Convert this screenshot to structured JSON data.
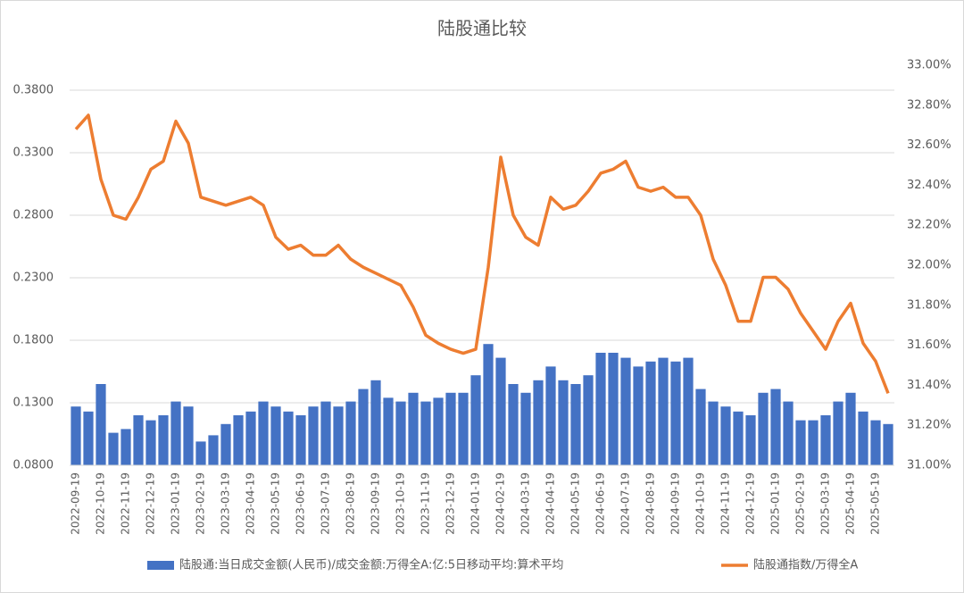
{
  "chart_data": {
    "type": "bar-line",
    "title": "陆股通比较",
    "categories": [
      "2022-09-19",
      null,
      "2022-10-19",
      null,
      "2022-11-19",
      null,
      "2022-12-19",
      null,
      "2023-01-19",
      null,
      "2023-02-19",
      null,
      "2023-03-19",
      null,
      "2023-04-19",
      null,
      "2023-05-19",
      null,
      "2023-06-19",
      null,
      "2023-07-19",
      null,
      "2023-08-19",
      null,
      "2023-09-19",
      null,
      "2023-10-19",
      null,
      "2023-11-19",
      null,
      "2023-12-19",
      null,
      "2024-01-19",
      null,
      "2024-02-19",
      null,
      "2024-03-19",
      null,
      "2024-04-19",
      null,
      "2024-05-19",
      null,
      "2024-06-19",
      null,
      "2024-07-19",
      null,
      "2024-08-19",
      null,
      "2024-09-19",
      null,
      "2024-10-19",
      null,
      "2024-11-19",
      null,
      "2024-12-19",
      null,
      "2025-01-19",
      null,
      "2025-02-19",
      null,
      "2025-03-19",
      null,
      "2025-04-19",
      null,
      "2025-05-19",
      null
    ],
    "series": [
      {
        "name": "陆股通:当日成交金额(人民币)/成交金额:万得全A:亿:5日移动平均:算术平均",
        "color": "#4472c4",
        "type": "bar",
        "values": [
          0.127,
          0.123,
          0.145,
          0.106,
          0.109,
          0.12,
          0.116,
          0.12,
          0.131,
          0.127,
          0.099,
          0.104,
          0.113,
          0.12,
          0.123,
          0.131,
          0.127,
          0.123,
          0.12,
          0.127,
          0.131,
          0.127,
          0.131,
          0.141,
          0.148,
          0.134,
          0.131,
          0.138,
          0.131,
          0.134,
          0.138,
          0.138,
          0.152,
          0.177,
          0.166,
          0.145,
          0.138,
          0.148,
          0.159,
          0.148,
          0.145,
          0.152,
          0.17,
          0.17,
          0.166,
          0.159,
          0.163,
          0.166,
          0.163,
          0.166,
          0.141,
          0.131,
          0.127,
          0.123,
          0.12,
          0.138,
          0.141,
          0.131,
          0.116,
          0.116,
          0.12,
          0.131,
          0.138,
          0.123,
          0.116,
          0.113
        ]
      },
      {
        "name": "陆股通指数/万得全A",
        "color": "#ed7d31",
        "type": "line",
        "axis": "y2",
        "values": [
          32.68,
          32.75,
          32.43,
          32.25,
          32.23,
          32.34,
          32.48,
          32.52,
          32.72,
          32.61,
          32.34,
          32.32,
          32.3,
          32.32,
          32.34,
          32.3,
          32.14,
          32.08,
          32.1,
          32.05,
          32.05,
          32.1,
          32.03,
          31.99,
          31.96,
          31.93,
          31.9,
          31.79,
          31.65,
          31.61,
          31.58,
          31.56,
          31.58,
          31.99,
          32.54,
          32.25,
          32.14,
          32.1,
          32.34,
          32.28,
          32.3,
          32.37,
          32.46,
          32.48,
          32.52,
          32.39,
          32.37,
          32.39,
          32.34,
          32.34,
          32.25,
          32.03,
          31.9,
          31.72,
          31.72,
          31.94,
          31.94,
          31.88,
          31.76,
          31.67,
          31.58,
          31.72,
          31.81,
          31.61,
          31.52,
          31.36
        ]
      }
    ],
    "ylim": [
      0.08,
      0.4
    ],
    "yticks": [
      {
        "value": 0.08,
        "label": "0.0800"
      },
      {
        "value": 0.13,
        "label": "0.1300"
      },
      {
        "value": 0.18,
        "label": "0.1800"
      },
      {
        "value": 0.23,
        "label": "0.2300"
      },
      {
        "value": 0.28,
        "label": "0.2800"
      },
      {
        "value": 0.33,
        "label": "0.3300"
      },
      {
        "value": 0.38,
        "label": "0.3800"
      }
    ],
    "y2lim": [
      31,
      33
    ],
    "y2ticks": [
      {
        "value": 31,
        "label": "31.00%"
      },
      {
        "value": 31.2,
        "label": "31.20%"
      },
      {
        "value": 31.4,
        "label": "31.40%"
      },
      {
        "value": 31.6,
        "label": "31.60%"
      },
      {
        "value": 31.8,
        "label": "31.80%"
      },
      {
        "value": 32,
        "label": "32.00%"
      },
      {
        "value": 32.2,
        "label": "32.20%"
      },
      {
        "value": 32.4,
        "label": "32.40%"
      },
      {
        "value": 32.6,
        "label": "32.60%"
      },
      {
        "value": 32.8,
        "label": "32.80%"
      },
      {
        "value": 33,
        "label": "33.00%"
      }
    ],
    "grid": true,
    "legend": "bottom"
  }
}
